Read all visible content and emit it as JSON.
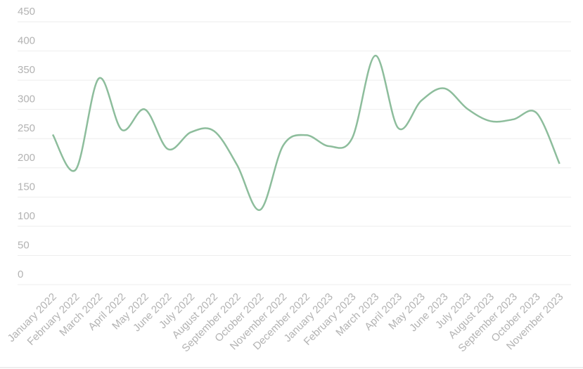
{
  "chart_data": {
    "type": "line",
    "categories": [
      "January 2022",
      "February 2022",
      "March 2022",
      "April 2022",
      "May 2022",
      "June 2022",
      "July 2022",
      "August 2022",
      "September 2022",
      "October 2022",
      "November 2022",
      "December 2022",
      "January 2023",
      "February 2023",
      "March 2023",
      "April 2023",
      "May 2023",
      "June 2023",
      "July 2023",
      "August 2023",
      "September 2023",
      "October 2023",
      "November 2023"
    ],
    "series": [
      {
        "color": "#8dbd9c",
        "values": [
          257,
          197,
          353,
          265,
          300,
          232,
          261,
          263,
          205,
          128,
          238,
          256,
          237,
          251,
          392,
          268,
          315,
          336,
          301,
          280,
          283,
          294,
          207
        ]
      }
    ],
    "ylim": [
      0,
      450
    ],
    "yticks": [
      0,
      50,
      100,
      150,
      200,
      250,
      300,
      350,
      400,
      450
    ],
    "grid": true,
    "smooth": true
  }
}
